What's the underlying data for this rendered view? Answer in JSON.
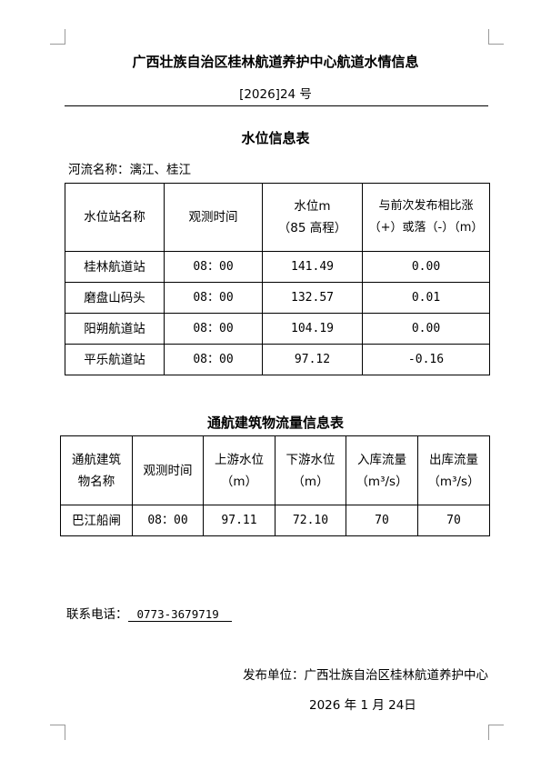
{
  "document": {
    "title": "广西壮族自治区桂林航道养护中心航道水情信息",
    "doc_number": "[2026]24 号",
    "water_table_title": "水位信息表",
    "river_label": "河流名称：漓江、桂江",
    "water_table": {
      "headers": [
        "水位站名称",
        "观测时间",
        "水位m\n（85 高程）",
        "与前次发布相比涨\n（+）或落（-）（m）"
      ],
      "rows": [
        [
          "桂林航道站",
          "08：00",
          "141.49",
          "0.00"
        ],
        [
          "磨盘山码头",
          "08：00",
          "132.57",
          "0.01"
        ],
        [
          "阳朔航道站",
          "08：00",
          "104.19",
          "0.00"
        ],
        [
          "平乐航道站",
          "08：00",
          "97.12",
          "-0.16"
        ]
      ]
    },
    "nav_table_title": "通航建筑物流量信息表",
    "nav_table": {
      "headers": [
        "通航建筑\n物名称",
        "观测时间",
        "上游水位\n（m）",
        "下游水位\n（m）",
        "入库流量\n（m³/s）",
        "出库流量\n（m³/s）"
      ],
      "rows": [
        [
          "巴江船闸",
          "08：00",
          "97.11",
          "72.10",
          "70",
          "70"
        ]
      ]
    },
    "contact_label": "联系电话：",
    "contact_phone": "0773-3679719",
    "publisher": "发布单位：广西壮族自治区桂林航道养护中心",
    "date": "2026 年 1 月 24日"
  }
}
